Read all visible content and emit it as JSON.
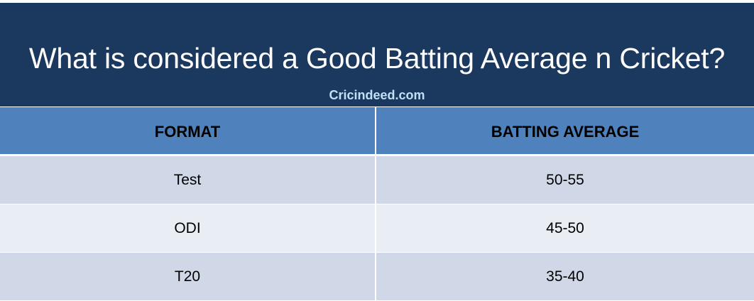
{
  "header": {
    "title": "What is considered a Good Batting Average n Cricket?",
    "subtitle": "Cricindeed.com"
  },
  "table": {
    "columns": [
      "FORMAT",
      "BATTING AVERAGE"
    ],
    "rows": [
      {
        "format": "Test",
        "average": "50-55"
      },
      {
        "format": "ODI",
        "average": "45-50"
      },
      {
        "format": "T20",
        "average": "35-40"
      }
    ]
  },
  "colors": {
    "header_bg": "#1b385e",
    "subtitle": "#bfe0f7",
    "column_header_bg": "#4f81bd",
    "row_band_dark": "#d0d8e8",
    "row_band_light": "#e9edf4"
  }
}
